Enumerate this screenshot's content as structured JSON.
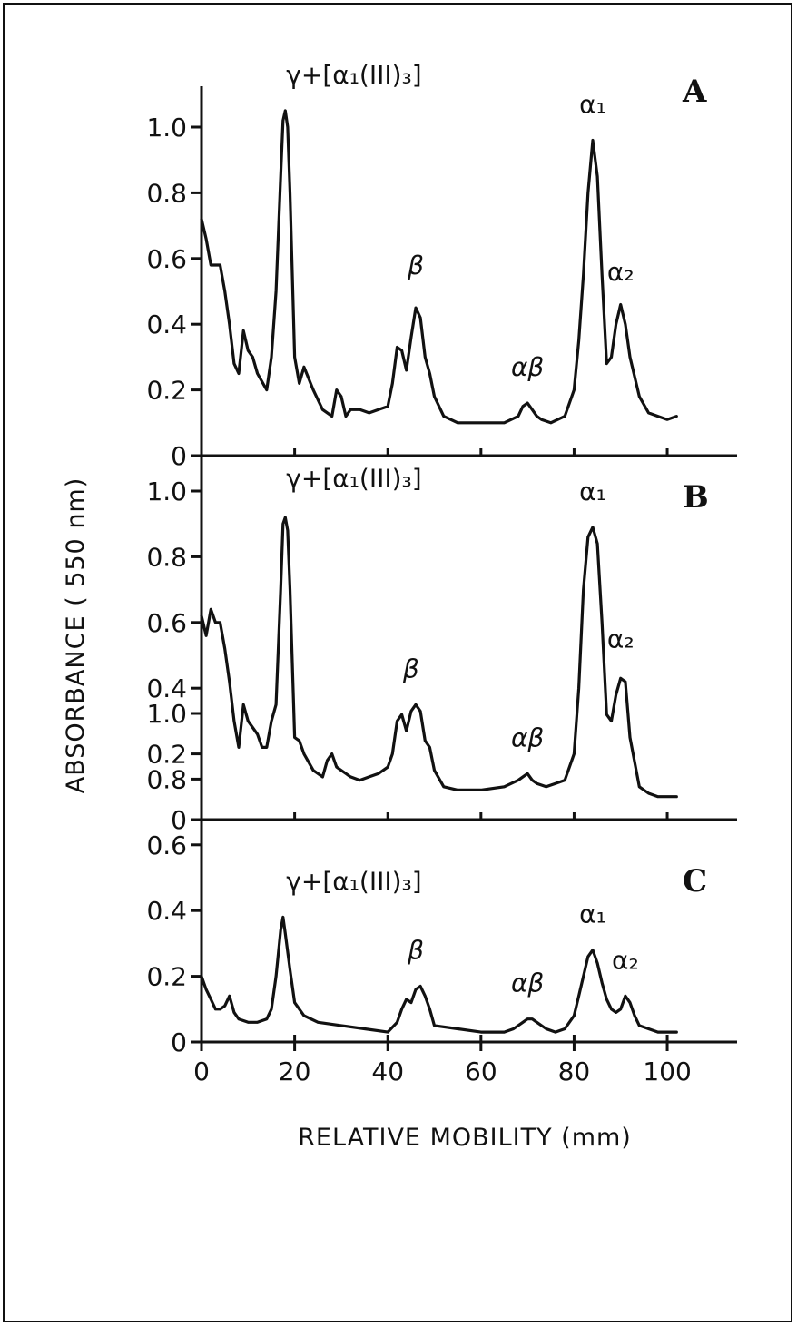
{
  "chart_data": {
    "type": "line",
    "xlabel": "RELATIVE MOBILITY (mm)",
    "ylabel": "ABSORBANCE ( 550 nm)",
    "xlim": [
      0,
      115
    ],
    "ylim": [
      0,
      1.1
    ],
    "x_ticks": [
      "0",
      "20",
      "40",
      "60",
      "80",
      "100"
    ],
    "y_ticks": [
      "0",
      "0.2",
      "0.4",
      "0.6",
      "0.8",
      "1.0"
    ],
    "panels": [
      {
        "label": "A",
        "peak_labels": [
          {
            "text": "γ+[α₁(III)₃]",
            "x": 17,
            "y": 1.05
          },
          {
            "text": "β",
            "x": 46,
            "y": 0.47
          },
          {
            "text": "αβ",
            "x": 70,
            "y": 0.16
          },
          {
            "text": "α₁",
            "x": 84,
            "y": 0.96
          },
          {
            "text": "α₂",
            "x": 90,
            "y": 0.45
          }
        ],
        "x": [
          0,
          1,
          2,
          3,
          4,
          5,
          6,
          7,
          8,
          9,
          10,
          11,
          12,
          14,
          15,
          16,
          17,
          17.5,
          18,
          18.5,
          19,
          20,
          21,
          22,
          24,
          26,
          28,
          29,
          30,
          31,
          32,
          34,
          36,
          38,
          40,
          41,
          42,
          43,
          44,
          45,
          46,
          47,
          48,
          49,
          50,
          52,
          55,
          60,
          65,
          68,
          69,
          70,
          71,
          72,
          73,
          75,
          78,
          80,
          81,
          82,
          83,
          84,
          85,
          86,
          87,
          88,
          89,
          90,
          91,
          92,
          94,
          96,
          98,
          100,
          102
        ],
        "y": [
          0.72,
          0.66,
          0.58,
          0.58,
          0.58,
          0.5,
          0.4,
          0.28,
          0.25,
          0.38,
          0.32,
          0.3,
          0.25,
          0.2,
          0.3,
          0.5,
          0.85,
          1.02,
          1.05,
          1.0,
          0.8,
          0.3,
          0.22,
          0.27,
          0.2,
          0.14,
          0.12,
          0.2,
          0.18,
          0.12,
          0.14,
          0.14,
          0.13,
          0.14,
          0.15,
          0.22,
          0.33,
          0.32,
          0.26,
          0.36,
          0.45,
          0.42,
          0.3,
          0.25,
          0.18,
          0.12,
          0.1,
          0.1,
          0.1,
          0.12,
          0.15,
          0.16,
          0.14,
          0.12,
          0.11,
          0.1,
          0.12,
          0.2,
          0.35,
          0.55,
          0.8,
          0.96,
          0.85,
          0.55,
          0.28,
          0.3,
          0.4,
          0.46,
          0.4,
          0.3,
          0.18,
          0.13,
          0.12,
          0.11,
          0.12
        ]
      },
      {
        "label": "B",
        "peak_labels": [
          {
            "text": "γ+[α₁(III)₃]",
            "x": 17,
            "y": 0.93
          },
          {
            "text": "β",
            "x": 45,
            "y": 0.35
          },
          {
            "text": "αβ",
            "x": 70,
            "y": 0.14
          },
          {
            "text": "α₁",
            "x": 84,
            "y": 0.89
          },
          {
            "text": "α₂",
            "x": 90,
            "y": 0.44
          }
        ],
        "x": [
          0,
          1,
          2,
          3,
          4,
          5,
          6,
          7,
          8,
          9,
          10,
          11,
          12,
          13,
          14,
          15,
          16,
          17,
          17.5,
          18,
          18.5,
          19,
          20,
          21,
          22,
          24,
          26,
          27,
          28,
          29,
          30,
          32,
          34,
          36,
          38,
          40,
          41,
          42,
          43,
          44,
          45,
          46,
          47,
          48,
          49,
          50,
          52,
          55,
          60,
          65,
          68,
          69,
          70,
          71,
          72,
          74,
          76,
          78,
          80,
          81,
          82,
          83,
          84,
          85,
          86,
          87,
          88,
          89,
          90,
          91,
          92,
          94,
          96,
          98,
          100,
          102
        ],
        "y": [
          0.62,
          0.56,
          0.64,
          0.6,
          0.6,
          0.52,
          0.42,
          0.3,
          0.22,
          0.35,
          0.3,
          0.28,
          0.26,
          0.22,
          0.22,
          0.3,
          0.35,
          0.7,
          0.9,
          0.92,
          0.88,
          0.7,
          0.25,
          0.24,
          0.2,
          0.15,
          0.13,
          0.18,
          0.2,
          0.16,
          0.15,
          0.13,
          0.12,
          0.13,
          0.14,
          0.16,
          0.2,
          0.3,
          0.32,
          0.27,
          0.33,
          0.35,
          0.33,
          0.24,
          0.22,
          0.15,
          0.1,
          0.09,
          0.09,
          0.1,
          0.12,
          0.13,
          0.14,
          0.12,
          0.11,
          0.1,
          0.11,
          0.12,
          0.2,
          0.4,
          0.7,
          0.86,
          0.89,
          0.84,
          0.6,
          0.32,
          0.3,
          0.38,
          0.43,
          0.42,
          0.25,
          0.1,
          0.08,
          0.07,
          0.07,
          0.07
        ]
      },
      {
        "label": "C",
        "peak_labels": [
          {
            "text": "γ+[α₁(III)₃]",
            "x": 17,
            "y": 0.38
          },
          {
            "text": "β",
            "x": 46,
            "y": 0.17
          },
          {
            "text": "αβ",
            "x": 70,
            "y": 0.07
          },
          {
            "text": "α₁",
            "x": 84,
            "y": 0.28
          },
          {
            "text": "α₂",
            "x": 91,
            "y": 0.14
          }
        ],
        "x": [
          0,
          1,
          2,
          3,
          4,
          5,
          6,
          7,
          8,
          10,
          12,
          14,
          15,
          16,
          17,
          17.5,
          18,
          19,
          20,
          22,
          25,
          30,
          35,
          40,
          42,
          43,
          44,
          45,
          46,
          47,
          48,
          49,
          50,
          55,
          60,
          65,
          67,
          69,
          70,
          71,
          72,
          74,
          76,
          78,
          80,
          81,
          82,
          83,
          84,
          85,
          86,
          87,
          88,
          89,
          90,
          91,
          92,
          93,
          94,
          96,
          98,
          100,
          102
        ],
        "y": [
          0.2,
          0.16,
          0.13,
          0.1,
          0.1,
          0.11,
          0.14,
          0.09,
          0.07,
          0.06,
          0.06,
          0.07,
          0.1,
          0.2,
          0.34,
          0.38,
          0.33,
          0.22,
          0.12,
          0.08,
          0.06,
          0.05,
          0.04,
          0.03,
          0.06,
          0.1,
          0.13,
          0.12,
          0.16,
          0.17,
          0.14,
          0.1,
          0.05,
          0.04,
          0.03,
          0.03,
          0.04,
          0.06,
          0.07,
          0.07,
          0.06,
          0.04,
          0.03,
          0.04,
          0.08,
          0.14,
          0.2,
          0.26,
          0.28,
          0.24,
          0.18,
          0.13,
          0.1,
          0.09,
          0.1,
          0.14,
          0.12,
          0.08,
          0.05,
          0.04,
          0.03,
          0.03,
          0.03
        ]
      }
    ]
  }
}
